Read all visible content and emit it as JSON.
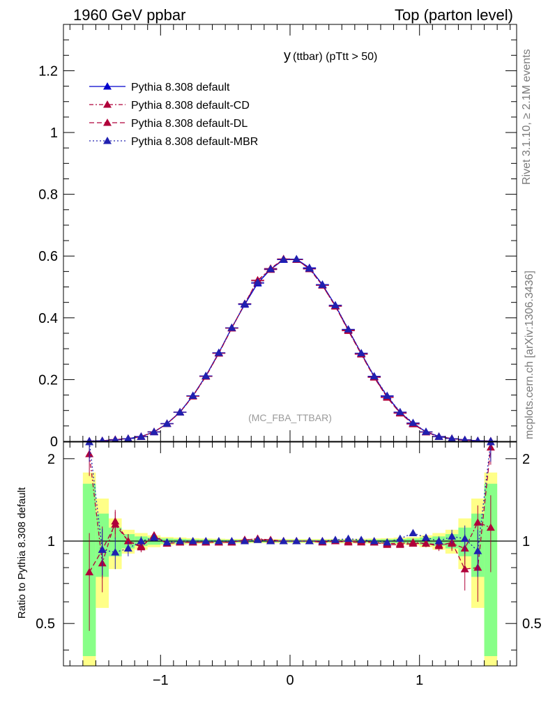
{
  "header": {
    "left": "1960 GeV ppbar",
    "right": "Top (parton level)"
  },
  "side_labels": {
    "rivet": "Rivet 3.1.10, ≥ 2.1M events",
    "mcplots": "mcplots.cern.ch [arXiv:1306.3436]"
  },
  "chart_data": [
    {
      "type": "line",
      "title_main": "y",
      "title_rest": "(ttbar) (pTtt > 50)",
      "watermark": "(MC_FBA_TTBAR)",
      "xlim": [
        -1.75,
        1.75
      ],
      "ylim": [
        0,
        1.35
      ],
      "yticks": [
        0.2,
        0.4,
        0.6,
        0.8,
        1,
        1.2
      ],
      "yticks_labeled": [
        0,
        0.2,
        0.4,
        0.6,
        0.8,
        1,
        1.2
      ],
      "ytick_labels": [
        "0",
        "0.2",
        "0.4",
        "0.6",
        "0.8",
        "1",
        "1.2"
      ],
      "grid": false,
      "legend_position": "top-left",
      "x": [
        -1.55,
        -1.45,
        -1.35,
        -1.25,
        -1.15,
        -1.05,
        -0.95,
        -0.85,
        -0.75,
        -0.65,
        -0.55,
        -0.45,
        -0.35,
        -0.25,
        -0.15,
        -0.05,
        0.05,
        0.15,
        0.25,
        0.35,
        0.45,
        0.55,
        0.65,
        0.75,
        0.85,
        0.95,
        1.05,
        1.15,
        1.25,
        1.35,
        1.45,
        1.55
      ],
      "series": [
        {
          "name": "Pythia 8.308 default",
          "color": "#0000cc",
          "dash": "solid",
          "values": [
            0.0008,
            0.002,
            0.005,
            0.009,
            0.016,
            0.03,
            0.058,
            0.095,
            0.148,
            0.212,
            0.287,
            0.368,
            0.443,
            0.512,
            0.557,
            0.588,
            0.59,
            0.562,
            0.508,
            0.44,
            0.362,
            0.285,
            0.21,
            0.146,
            0.094,
            0.058,
            0.031,
            0.016,
            0.009,
            0.005,
            0.002,
            0.0008
          ]
        },
        {
          "name": "Pythia 8.308 default-CD",
          "color": "#b0003a",
          "dash": "6,3,2,3",
          "values": [
            0.0009,
            0.002,
            0.006,
            0.009,
            0.015,
            0.031,
            0.057,
            0.094,
            0.146,
            0.21,
            0.285,
            0.366,
            0.445,
            0.52,
            0.56,
            0.59,
            0.588,
            0.56,
            0.505,
            0.437,
            0.36,
            0.283,
            0.208,
            0.143,
            0.092,
            0.057,
            0.03,
            0.015,
            0.009,
            0.005,
            0.002,
            0.0009
          ]
        },
        {
          "name": "Pythia 8.308 default-DL",
          "color": "#b0003a",
          "dash": "7,4",
          "values": [
            0.0006,
            0.002,
            0.006,
            0.009,
            0.015,
            0.031,
            0.057,
            0.094,
            0.147,
            0.211,
            0.285,
            0.367,
            0.446,
            0.522,
            0.556,
            0.591,
            0.589,
            0.558,
            0.505,
            0.438,
            0.358,
            0.282,
            0.207,
            0.142,
            0.091,
            0.056,
            0.03,
            0.015,
            0.009,
            0.004,
            0.002,
            0.0009
          ]
        },
        {
          "name": "Pythia 8.308 default-MBR",
          "color": "#2020b0",
          "dash": "2,3",
          "values": [
            0.0009,
            0.002,
            0.005,
            0.009,
            0.015,
            0.031,
            0.057,
            0.094,
            0.148,
            0.212,
            0.287,
            0.368,
            0.445,
            0.515,
            0.558,
            0.589,
            0.59,
            0.56,
            0.507,
            0.441,
            0.363,
            0.286,
            0.211,
            0.148,
            0.095,
            0.06,
            0.031,
            0.015,
            0.009,
            0.005,
            0.002,
            0.0009
          ]
        }
      ]
    },
    {
      "type": "line",
      "ylabel": "Ratio to Pythia 8.308 default",
      "xlim": [
        -1.75,
        1.75
      ],
      "ylim": [
        0.35,
        2.3
      ],
      "xticks": [
        -1,
        0,
        1
      ],
      "xtick_labels": [
        "−1",
        "0",
        "1"
      ],
      "yticks": [
        0.5,
        1,
        2
      ],
      "ytick_labels": [
        "0.5",
        "1",
        "2"
      ],
      "reference_line": 1,
      "x": [
        -1.55,
        -1.45,
        -1.35,
        -1.25,
        -1.15,
        -1.05,
        -0.95,
        -0.85,
        -0.75,
        -0.65,
        -0.55,
        -0.45,
        -0.35,
        -0.25,
        -0.15,
        -0.05,
        0.05,
        0.15,
        0.25,
        0.35,
        0.45,
        0.55,
        0.65,
        0.75,
        0.85,
        0.95,
        1.05,
        1.15,
        1.25,
        1.35,
        1.45,
        1.55
      ],
      "band_outer": [
        0.78,
        0.43,
        0.21,
        0.1,
        0.07,
        0.05,
        0.035,
        0.03,
        0.025,
        0.022,
        0.02,
        0.018,
        0.018,
        0.017,
        0.017,
        0.017,
        0.017,
        0.017,
        0.017,
        0.018,
        0.018,
        0.02,
        0.022,
        0.025,
        0.03,
        0.035,
        0.05,
        0.07,
        0.1,
        0.21,
        0.43,
        0.78
      ],
      "band_inner": [
        0.62,
        0.26,
        0.12,
        0.06,
        0.04,
        0.03,
        0.022,
        0.018,
        0.015,
        0.013,
        0.012,
        0.011,
        0.011,
        0.01,
        0.01,
        0.01,
        0.01,
        0.01,
        0.01,
        0.011,
        0.011,
        0.012,
        0.013,
        0.015,
        0.018,
        0.022,
        0.03,
        0.04,
        0.06,
        0.12,
        0.26,
        0.62
      ],
      "band_colors": {
        "outer": "#ffff88",
        "inner": "#88ff88"
      },
      "series": [
        {
          "name": "Pythia 8.308 default-CD",
          "color": "#b0003a",
          "dash": "6,3,2,3",
          "values": [
            2.08,
            0.83,
            1.18,
            1.0,
            0.95,
            1.05,
            0.98,
            0.99,
            0.99,
            0.99,
            0.99,
            0.99,
            1.01,
            1.02,
            1.01,
            1.0,
            1.0,
            1.0,
            1.0,
            1.0,
            1.0,
            1.0,
            0.99,
            0.98,
            0.98,
            0.99,
            0.98,
            0.97,
            0.98,
            0.94,
            1.17,
            1.12
          ],
          "errors": [
            0.35,
            0.18,
            0.12,
            0.06,
            0.04,
            0.03,
            0.02,
            0.015,
            0.012,
            0.01,
            0.01,
            0.01,
            0.01,
            0.01,
            0.01,
            0.01,
            0.01,
            0.01,
            0.01,
            0.01,
            0.01,
            0.01,
            0.01,
            0.012,
            0.015,
            0.02,
            0.03,
            0.04,
            0.06,
            0.12,
            0.18,
            0.35
          ]
        },
        {
          "name": "Pythia 8.308 default-DL",
          "color": "#b0003a",
          "dash": "7,4",
          "values": [
            0.77,
            0.93,
            1.15,
            1.0,
            0.96,
            1.04,
            0.98,
            0.99,
            0.99,
            0.99,
            0.99,
            0.99,
            1.01,
            1.02,
            1.0,
            1.0,
            1.0,
            1.0,
            0.99,
            1.0,
            0.99,
            0.99,
            0.99,
            0.97,
            0.97,
            0.98,
            0.98,
            0.96,
            0.99,
            0.79,
            0.8,
            2.2
          ],
          "errors": [
            0.3,
            0.2,
            0.13,
            0.06,
            0.04,
            0.03,
            0.02,
            0.015,
            0.012,
            0.01,
            0.01,
            0.01,
            0.01,
            0.01,
            0.01,
            0.01,
            0.01,
            0.01,
            0.01,
            0.01,
            0.01,
            0.01,
            0.01,
            0.012,
            0.015,
            0.02,
            0.03,
            0.04,
            0.06,
            0.13,
            0.2,
            0.3
          ]
        },
        {
          "name": "Pythia 8.308 default-MBR",
          "color": "#2020b0",
          "dash": "2,3",
          "values": [
            2.3,
            0.93,
            0.91,
            0.94,
            1.0,
            1.03,
            0.99,
            1.0,
            1.0,
            1.0,
            1.0,
            1.0,
            1.0,
            1.01,
            1.0,
            1.0,
            1.0,
            1.0,
            1.0,
            1.01,
            1.02,
            1.01,
            1.0,
            0.99,
            1.02,
            1.07,
            1.03,
            1.0,
            1.04,
            1.02,
            0.92,
            2.3
          ],
          "errors": [
            0.35,
            0.18,
            0.12,
            0.06,
            0.04,
            0.03,
            0.02,
            0.015,
            0.012,
            0.01,
            0.01,
            0.01,
            0.01,
            0.01,
            0.01,
            0.01,
            0.01,
            0.01,
            0.01,
            0.01,
            0.01,
            0.01,
            0.01,
            0.012,
            0.015,
            0.02,
            0.03,
            0.04,
            0.06,
            0.12,
            0.18,
            0.35
          ]
        }
      ]
    }
  ]
}
